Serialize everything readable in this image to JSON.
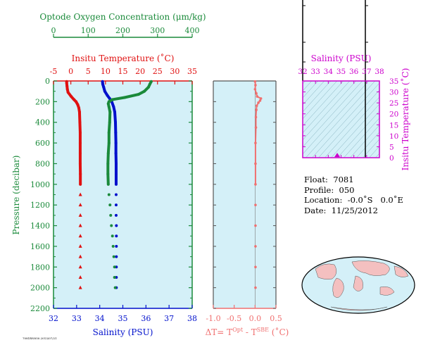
{
  "info": {
    "float_label": "Float:",
    "float": "7081",
    "profile_label": "Profile:",
    "profile": "050",
    "location_label": "Location:",
    "location": "-0.0˚S   0.0˚E",
    "date_label": "Date:",
    "date": "11/25/2012"
  },
  "footer_tag": "7081RN050.2013/07/21",
  "colors": {
    "panel_bg": "#d4f0f8",
    "green": "#1a8a3a",
    "red": "#e01010",
    "blue": "#0010cc",
    "pink": "#f07070",
    "magenta": "#cc00cc",
    "land": "#f4c0c0",
    "ocean": "#d4f0f8"
  },
  "chart_data": [
    {
      "type": "line",
      "panel": "profiles",
      "ylabel": "Pressure (decibar)",
      "ylim": [
        2200,
        0
      ],
      "yticks": [
        0,
        200,
        400,
        600,
        800,
        1000,
        1200,
        1400,
        1600,
        1800,
        2000,
        2200
      ],
      "axes": {
        "oxygen": {
          "label": "Optode Oxygen Concentration (μm/kg)",
          "lim": [
            0,
            400
          ],
          "ticks": [
            0,
            100,
            200,
            300,
            400
          ]
        },
        "temperature": {
          "label": "Insitu Temperature (˚C)",
          "lim": [
            -5,
            35
          ],
          "ticks": [
            -5,
            0,
            5,
            10,
            15,
            20,
            25,
            30,
            35
          ]
        },
        "salinity": {
          "label": "Salinity (PSU)",
          "lim": [
            32,
            38
          ],
          "ticks": [
            32,
            33,
            34,
            35,
            36,
            37,
            38
          ]
        }
      },
      "series": [
        {
          "axis": "temperature",
          "color": "red",
          "p": [
            5,
            20,
            50,
            80,
            110,
            150,
            180,
            200,
            230,
            260,
            300,
            400,
            500,
            600,
            700,
            800,
            900,
            1000,
            1100,
            1200,
            1300,
            1400,
            1500,
            1600,
            1700,
            1800,
            1900,
            2000
          ],
          "v": [
            -1.2,
            -1.2,
            -1.1,
            -1.0,
            -0.8,
            0.1,
            0.9,
            1.5,
            2.0,
            2.3,
            2.5,
            2.6,
            2.7,
            2.7,
            2.7,
            2.7,
            2.75,
            2.75,
            2.75,
            2.75,
            2.75,
            2.75,
            2.75,
            2.75,
            2.75,
            2.75,
            2.75,
            2.75
          ]
        },
        {
          "axis": "salinity",
          "color": "blue",
          "p": [
            5,
            30,
            60,
            100,
            140,
            170,
            200,
            250,
            300,
            400,
            500,
            600,
            700,
            800,
            900,
            1000,
            1100,
            1200,
            1300,
            1400,
            1500,
            1600,
            1700,
            1800,
            1900,
            2000
          ],
          "v": [
            34.12,
            34.13,
            34.17,
            34.22,
            34.33,
            34.43,
            34.52,
            34.6,
            34.65,
            34.68,
            34.69,
            34.7,
            34.7,
            34.71,
            34.71,
            34.71,
            34.71,
            34.71,
            34.71,
            34.72,
            34.72,
            34.72,
            34.72,
            34.72,
            34.72,
            34.72
          ]
        },
        {
          "axis": "oxygen",
          "color": "green",
          "p": [
            5,
            30,
            60,
            100,
            130,
            160,
            180,
            200,
            220,
            250,
            300,
            400,
            500,
            600,
            700,
            800,
            900,
            1000,
            1100,
            1200,
            1300,
            1400,
            1500,
            1600,
            1700,
            1800,
            1900,
            2000
          ],
          "v": [
            282,
            278,
            274,
            262,
            245,
            205,
            170,
            160,
            158,
            160,
            163,
            162,
            160,
            160,
            158,
            157,
            157,
            158,
            160,
            163,
            165,
            167,
            170,
            172,
            174,
            176,
            176,
            178
          ]
        }
      ]
    },
    {
      "type": "line",
      "panel": "delta_t",
      "xlabel": "ΔT= T^Opt - T^SBE (˚C)",
      "xlim": [
        -1.0,
        0.5
      ],
      "xticks": [
        -1.0,
        -0.5,
        0.0,
        0.5
      ],
      "ylim": [
        2200,
        0
      ],
      "series": [
        {
          "color": "pink",
          "p": [
            5,
            40,
            80,
            120,
            150,
            170,
            190,
            210,
            240,
            280,
            350,
            450,
            600,
            800,
            1000,
            1200,
            1400,
            1600,
            1800,
            2000
          ],
          "v": [
            0.0,
            0.01,
            0.0,
            0.03,
            0.05,
            0.14,
            0.12,
            0.08,
            0.04,
            0.03,
            0.02,
            0.02,
            0.01,
            0.01,
            0.01,
            0.01,
            0.01,
            0.01,
            0.01,
            0.01
          ]
        }
      ]
    },
    {
      "type": "scatter",
      "panel": "ts",
      "xlabel": "Salinity (PSU)",
      "ylabel": "Insitu Temperature (˚C)",
      "xlim": [
        32,
        38
      ],
      "xticks": [
        32,
        33,
        34,
        35,
        36,
        37,
        38
      ],
      "ylim": [
        0,
        35
      ],
      "yticks": [
        0,
        5,
        10,
        15,
        20,
        25,
        30,
        35
      ],
      "points": [
        {
          "s": 34.7,
          "t": 0.6
        }
      ]
    }
  ]
}
